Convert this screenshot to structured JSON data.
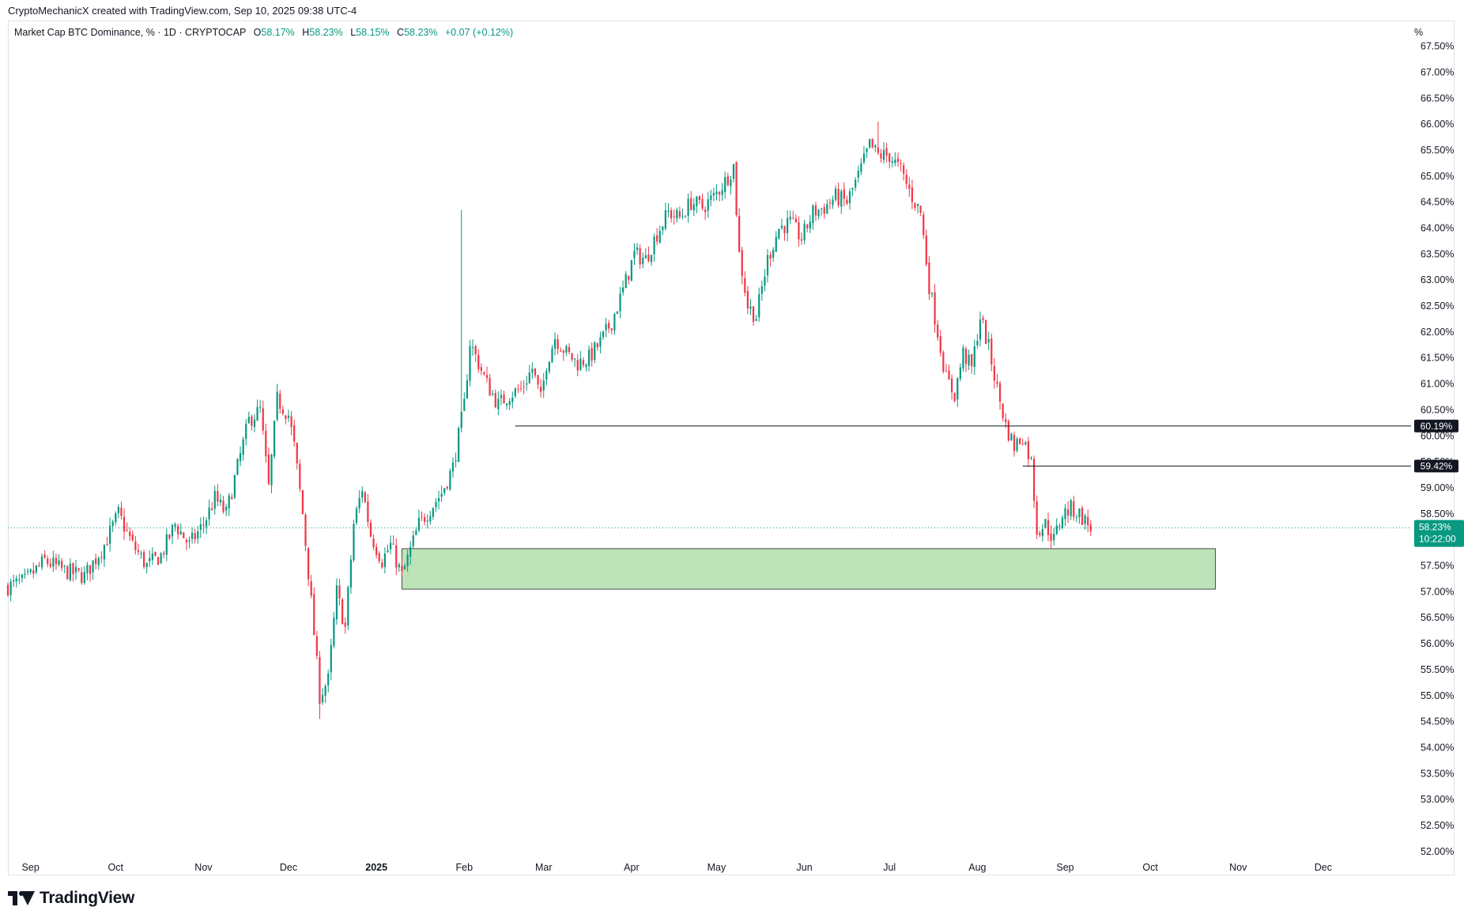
{
  "header": {
    "created_by": "CryptoMechanicX created with TradingView.com, Sep 10, 2025 09:38 UTC-4"
  },
  "legend": {
    "symbol": "Market Cap BTC Dominance, % · 1D · CRYPTOCAP",
    "open_label": "O",
    "open": "58.17%",
    "high_label": "H",
    "high": "58.23%",
    "low_label": "L",
    "low": "58.15%",
    "close_label": "C",
    "close": "58.23%",
    "change": "+0.07 (+0.12%)"
  },
  "axis_unit": "%",
  "logo": {
    "text": "TradingView"
  },
  "colors": {
    "up": "#089981",
    "down": "#f23645",
    "zone_fill": "#bde3b9",
    "zone_stroke": "#4a4a4a",
    "level_line": "#131722",
    "price_badge": "#089981"
  },
  "chart_data": {
    "type": "candlestick",
    "title": "",
    "xlabel": "",
    "ylabel": "",
    "ylim": [
      51.8,
      67.6
    ],
    "y_ticks": [
      "52.00%",
      "52.50%",
      "53.00%",
      "53.50%",
      "54.00%",
      "54.50%",
      "55.00%",
      "55.50%",
      "56.00%",
      "56.50%",
      "57.00%",
      "57.50%",
      "58.00%",
      "58.50%",
      "59.00%",
      "59.50%",
      "60.00%",
      "60.50%",
      "61.00%",
      "61.50%",
      "62.00%",
      "62.50%",
      "63.00%",
      "63.50%",
      "64.00%",
      "64.50%",
      "65.00%",
      "65.50%",
      "66.00%",
      "66.50%",
      "67.00%",
      "67.50%"
    ],
    "x_ticks": [
      "Sep",
      "Oct",
      "Nov",
      "Dec",
      "2025",
      "Feb",
      "Mar",
      "Apr",
      "May",
      "Jun",
      "Jul",
      "Aug",
      "Sep",
      "Oct",
      "Nov",
      "Dec"
    ],
    "x_tick_dates": [
      "2024-09-01",
      "2024-10-01",
      "2024-11-01",
      "2024-12-01",
      "2025-01-01",
      "2025-02-01",
      "2025-03-01",
      "2025-04-01",
      "2025-05-01",
      "2025-06-01",
      "2025-07-01",
      "2025-08-01",
      "2025-09-01",
      "2025-10-01",
      "2025-11-01",
      "2025-12-01"
    ],
    "x_range": [
      "2024-08-24",
      "2026-01-01"
    ],
    "close_path": [
      [
        "2024-08-24",
        57.1
      ],
      [
        "2024-08-30",
        57.2
      ],
      [
        "2024-09-06",
        57.6
      ],
      [
        "2024-09-13",
        57.4
      ],
      [
        "2024-09-20",
        57.3
      ],
      [
        "2024-09-27",
        57.9
      ],
      [
        "2024-10-02",
        58.5
      ],
      [
        "2024-10-07",
        57.9
      ],
      [
        "2024-10-12",
        57.5
      ],
      [
        "2024-10-17",
        57.7
      ],
      [
        "2024-10-22",
        58.3
      ],
      [
        "2024-10-27",
        57.9
      ],
      [
        "2024-11-01",
        58.3
      ],
      [
        "2024-11-05",
        58.8
      ],
      [
        "2024-11-09",
        58.5
      ],
      [
        "2024-11-13",
        59.4
      ],
      [
        "2024-11-17",
        60.3
      ],
      [
        "2024-11-21",
        60.5
      ],
      [
        "2024-11-24",
        59.0
      ],
      [
        "2024-11-27",
        60.7
      ],
      [
        "2024-12-01",
        60.4
      ],
      [
        "2024-12-03",
        59.8
      ],
      [
        "2024-12-06",
        58.5
      ],
      [
        "2024-12-09",
        56.8
      ],
      [
        "2024-12-12",
        55.0
      ],
      [
        "2024-12-15",
        55.3
      ],
      [
        "2024-12-18",
        57.0
      ],
      [
        "2024-12-21",
        56.3
      ],
      [
        "2024-12-24",
        58.3
      ],
      [
        "2024-12-27",
        59.0
      ],
      [
        "2024-12-30",
        58.1
      ],
      [
        "2025-01-03",
        57.6
      ],
      [
        "2025-01-06",
        57.9
      ],
      [
        "2025-01-10",
        57.3
      ],
      [
        "2025-01-13",
        57.8
      ],
      [
        "2025-01-16",
        58.3
      ],
      [
        "2025-01-20",
        58.6
      ],
      [
        "2025-01-24",
        58.9
      ],
      [
        "2025-01-28",
        59.4
      ],
      [
        "2025-02-01",
        60.6
      ],
      [
        "2025-02-03",
        61.8
      ],
      [
        "2025-02-06",
        61.4
      ],
      [
        "2025-02-09",
        61.0
      ],
      [
        "2025-02-13",
        60.6
      ],
      [
        "2025-02-17",
        60.8
      ],
      [
        "2025-02-21",
        60.9
      ],
      [
        "2025-02-25",
        61.3
      ],
      [
        "2025-02-28",
        60.7
      ],
      [
        "2025-03-02",
        61.4
      ],
      [
        "2025-03-05",
        61.9
      ],
      [
        "2025-03-09",
        61.6
      ],
      [
        "2025-03-13",
        61.4
      ],
      [
        "2025-03-17",
        61.5
      ],
      [
        "2025-03-21",
        61.8
      ],
      [
        "2025-03-25",
        62.2
      ],
      [
        "2025-03-29",
        62.8
      ],
      [
        "2025-04-02",
        63.5
      ],
      [
        "2025-04-06",
        63.4
      ],
      [
        "2025-04-10",
        63.9
      ],
      [
        "2025-04-14",
        64.3
      ],
      [
        "2025-04-18",
        64.2
      ],
      [
        "2025-04-22",
        64.5
      ],
      [
        "2025-04-26",
        64.4
      ],
      [
        "2025-04-30",
        64.6
      ],
      [
        "2025-05-04",
        64.9
      ],
      [
        "2025-05-07",
        65.2
      ],
      [
        "2025-05-09",
        63.5
      ],
      [
        "2025-05-12",
        62.5
      ],
      [
        "2025-05-15",
        62.3
      ],
      [
        "2025-05-19",
        63.4
      ],
      [
        "2025-05-23",
        64.0
      ],
      [
        "2025-05-27",
        64.1
      ],
      [
        "2025-05-31",
        63.8
      ],
      [
        "2025-06-04",
        64.3
      ],
      [
        "2025-06-08",
        64.4
      ],
      [
        "2025-06-12",
        64.6
      ],
      [
        "2025-06-16",
        64.5
      ],
      [
        "2025-06-20",
        65.0
      ],
      [
        "2025-06-24",
        65.6
      ],
      [
        "2025-06-27",
        65.4
      ],
      [
        "2025-07-01",
        65.4
      ],
      [
        "2025-07-05",
        65.1
      ],
      [
        "2025-07-09",
        64.6
      ],
      [
        "2025-07-12",
        64.3
      ],
      [
        "2025-07-15",
        62.9
      ],
      [
        "2025-07-18",
        62.0
      ],
      [
        "2025-07-21",
        61.1
      ],
      [
        "2025-07-24",
        60.8
      ],
      [
        "2025-07-27",
        61.6
      ],
      [
        "2025-07-30",
        61.3
      ],
      [
        "2025-08-02",
        62.3
      ],
      [
        "2025-08-05",
        61.7
      ],
      [
        "2025-08-08",
        60.9
      ],
      [
        "2025-08-11",
        60.2
      ],
      [
        "2025-08-14",
        59.8
      ],
      [
        "2025-08-17",
        60.0
      ],
      [
        "2025-08-20",
        59.5
      ],
      [
        "2025-08-22",
        58.2
      ],
      [
        "2025-08-25",
        58.3
      ],
      [
        "2025-08-28",
        58.0
      ],
      [
        "2025-08-31",
        58.5
      ],
      [
        "2025-09-03",
        58.6
      ],
      [
        "2025-09-06",
        58.5
      ],
      [
        "2025-09-10",
        58.23
      ]
    ],
    "extremes": [
      {
        "date": "2024-12-12",
        "low": 54.55
      },
      {
        "date": "2025-01-31",
        "high": 64.35
      },
      {
        "date": "2025-06-27",
        "high": 66.05
      }
    ],
    "horizontal_levels": [
      {
        "value": 60.19,
        "label": "60.19%",
        "from": "2025-02-19"
      },
      {
        "value": 59.42,
        "label": "59.42%",
        "from": "2025-08-17"
      }
    ],
    "zone": {
      "from": "2025-01-10",
      "to": "2025-10-24",
      "low": 57.05,
      "high": 57.83
    },
    "last_price": {
      "value": 58.23,
      "label": "58.23%",
      "countdown": "10:22:00"
    },
    "grid": false,
    "legend_position": "top-left"
  }
}
